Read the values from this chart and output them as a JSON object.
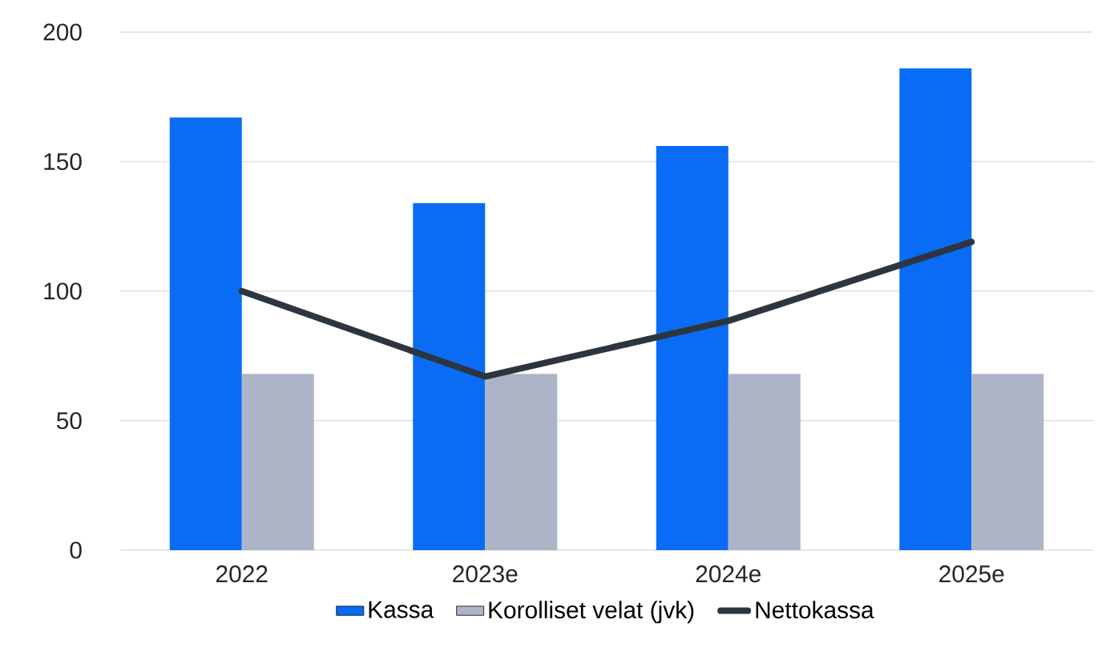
{
  "chart_data": {
    "type": "bar",
    "categories": [
      "2022",
      "2023e",
      "2024e",
      "2025e"
    ],
    "series": [
      {
        "name": "Kassa",
        "color": "#0a6cf5",
        "values": [
          167,
          134,
          156,
          186
        ]
      },
      {
        "name": "Korolliset velat (jvk)",
        "color": "#aeb4c8",
        "values": [
          68,
          68,
          68,
          68
        ]
      },
      {
        "name": "Nettokassa",
        "type": "line",
        "color": "#2d3640",
        "values": [
          100,
          67,
          88.5,
          119
        ]
      }
    ],
    "ylim": [
      0,
      200
    ],
    "yticks": [
      0,
      50,
      100,
      150,
      200
    ],
    "grid": "y",
    "legend": "bottom"
  }
}
